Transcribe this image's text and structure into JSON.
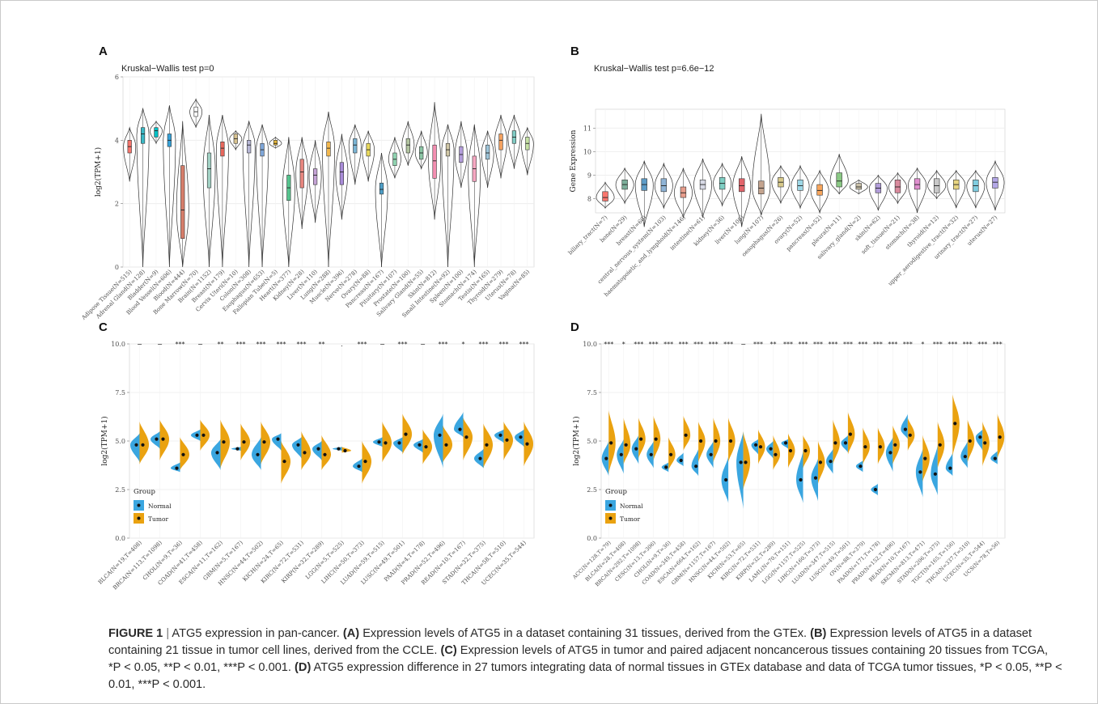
{
  "figure": {
    "caption_label": "FIGURE 1",
    "caption_separator": "|",
    "caption_segments": [
      {
        "text": "ATG5 expression in pan-cancer. ",
        "bold": false
      },
      {
        "text": "(A)",
        "bold": true
      },
      {
        "text": " Expression levels of ATG5 in a dataset containing 31 tissues, derived from the GTEx. ",
        "bold": false
      },
      {
        "text": "(B)",
        "bold": true
      },
      {
        "text": " Expression levels of ATG5 in a dataset containing 21 tissue in tumor cell lines, derived from the CCLE. ",
        "bold": false
      },
      {
        "text": "(C)",
        "bold": true
      },
      {
        "text": " Expression levels of ATG5 in tumor and paired adjacent noncancerous tissues containing 20 tissues from TCGA, *P < 0.05, **P < 0.01, ***P < 0.001. ",
        "bold": false
      },
      {
        "text": "(D)",
        "bold": true
      },
      {
        "text": " ATG5 expression difference in 27 tumors integrating data of normal tissues in GTEx database and data of TCGA tumor tissues, *P < 0.05, **P < 0.01, ***P < 0.001.",
        "bold": false
      }
    ]
  },
  "colors": {
    "normal": "#3aa6e0",
    "tumor": "#eaa210",
    "panel_bg": "#ffffff",
    "grid": "#ebebeb",
    "axis_text": "#4d4d4d"
  },
  "chart_data": [
    {
      "panel": "A",
      "type": "violin",
      "title": "Kruskal−Wallis test p=0",
      "xlabel": "",
      "ylabel": "log2(TPM+1)",
      "ylim": [
        0,
        6
      ],
      "yticks": [
        0,
        2,
        4,
        6
      ],
      "categories": [
        "Adipose Tissue(N=515)",
        "Adrenal Gland(N=128)",
        "Bladder(N=9)",
        "Blood Vessel(N=606)",
        "Blood(N=444)",
        "Bone Marrow(N=70)",
        "Brain(N=1152)",
        "Breast(N=179)",
        "Cervix Uteri(N=10)",
        "Colon(N=308)",
        "Esophagus(N=653)",
        "Fallopian Tube(N=5)",
        "Heart(N=377)",
        "Kidney(N=28)",
        "Liver(N=110)",
        "Lung(N=288)",
        "Muscle(N=396)",
        "Nerve(N=278)",
        "Ovary(N=88)",
        "Pancreas(N=167)",
        "Pituitary(N=107)",
        "Prostate(N=100)",
        "Salivary Gland(N=55)",
        "Skin(N=812)",
        "Small Intestine(N=92)",
        "Spleen(N=100)",
        "Stomach(N=174)",
        "Testis(N=165)",
        "Thyroid(N=279)",
        "Uterus(N=78)",
        "Vagina(N=85)"
      ],
      "medians": [
        3.8,
        4.2,
        4.3,
        4.0,
        1.8,
        4.9,
        3.1,
        3.75,
        4.05,
        3.85,
        3.7,
        3.9,
        2.5,
        3.0,
        2.9,
        3.75,
        3.0,
        3.85,
        3.7,
        2.45,
        3.4,
        3.85,
        3.6,
        3.35,
        3.7,
        3.55,
        3.1,
        3.6,
        4.0,
        4.1,
        3.9
      ],
      "q1": [
        3.6,
        3.9,
        4.1,
        3.8,
        0.9,
        4.75,
        2.5,
        3.5,
        3.9,
        3.6,
        3.5,
        3.85,
        2.1,
        2.5,
        2.6,
        3.5,
        2.6,
        3.6,
        3.5,
        2.3,
        3.2,
        3.6,
        3.4,
        2.8,
        3.5,
        3.3,
        2.7,
        3.4,
        3.7,
        3.9,
        3.7
      ],
      "q3": [
        4.0,
        4.4,
        4.4,
        4.2,
        3.2,
        5.05,
        3.6,
        3.95,
        4.2,
        4.0,
        3.9,
        4.0,
        2.9,
        3.4,
        3.1,
        3.95,
        3.3,
        4.05,
        3.9,
        2.65,
        3.6,
        4.05,
        3.8,
        3.85,
        3.9,
        3.8,
        3.5,
        3.85,
        4.2,
        4.3,
        4.1
      ],
      "ymin": [
        2.7,
        0,
        3.9,
        0,
        0,
        4.4,
        0,
        0,
        3.7,
        0,
        0,
        3.75,
        0,
        1.2,
        1.4,
        0,
        1.5,
        2.6,
        2.7,
        0,
        2.8,
        3.2,
        3.1,
        1.5,
        0,
        2.5,
        0,
        2.5,
        2.8,
        3.1,
        2.9
      ],
      "ymax": [
        4.4,
        5.0,
        4.6,
        5.1,
        4.6,
        5.3,
        4.8,
        4.8,
        4.3,
        4.6,
        4.5,
        4.1,
        4.1,
        4.1,
        4.0,
        4.9,
        4.2,
        4.5,
        4.3,
        3.6,
        4.1,
        4.6,
        4.3,
        5.2,
        4.5,
        4.6,
        4.5,
        4.3,
        4.8,
        4.8,
        4.4
      ],
      "fills": [
        "#f8766d",
        "#3ab9c6",
        "#00bfc4",
        "#35a2d9",
        "#d67d6a",
        "#ffffff",
        "#a3d2c5",
        "#e8685d",
        "#d8c390",
        "#b7b7d6",
        "#7fa7d9",
        "#e7b83a",
        "#55c48e",
        "#e8867f",
        "#c5a3d6",
        "#f2b84e",
        "#a98cd9",
        "#7bb5d5",
        "#e8d85c",
        "#4fa0c9",
        "#8fd3b0",
        "#b2c4a0",
        "#8bc6a5",
        "#f48fb1",
        "#d0c7a7",
        "#b39ddb",
        "#f6a7c1",
        "#9ec5d9",
        "#f4a261",
        "#80cbc4",
        "#c5e1a5"
      ]
    },
    {
      "panel": "B",
      "type": "violin",
      "title": "Kruskal−Wallis test p=6.6e−12",
      "xlabel": "",
      "ylabel": "Gene Expression",
      "ylim": [
        7.4,
        11.8
      ],
      "yticks": [
        8,
        9,
        10,
        11
      ],
      "categories": [
        "biliary_tract(N=7)",
        "bone(N=29)",
        "breast(N=60)",
        "central_nervous_system(N=103)",
        "haematopoietic_and_lymphoid(N=146)",
        "intestine(N=61)",
        "kidney(N=36)",
        "liver(N=108)",
        "lung(N=107)",
        "oesophagus(N=26)",
        "ovary(N=52)",
        "pancreas(N=52)",
        "pleura(N=11)",
        "salivary_gland(N=2)",
        "skin(N=62)",
        "soft_tissue(N=21)",
        "stomach(N=38)",
        "thyroid(N=12)",
        "upper_aerodigestive_tract(N=32)",
        "urinary_tract(N=27)",
        "uterus(N=27)"
      ],
      "medians": [
        8.05,
        8.6,
        8.6,
        8.55,
        8.25,
        8.6,
        8.65,
        8.55,
        8.45,
        8.7,
        8.55,
        8.35,
        8.75,
        8.5,
        8.45,
        8.5,
        8.6,
        8.55,
        8.6,
        8.55,
        8.7
      ],
      "q1": [
        7.9,
        8.4,
        8.35,
        8.3,
        8.05,
        8.4,
        8.4,
        8.3,
        8.2,
        8.5,
        8.35,
        8.15,
        8.5,
        8.4,
        8.25,
        8.25,
        8.4,
        8.25,
        8.4,
        8.3,
        8.45
      ],
      "q3": [
        8.3,
        8.8,
        8.85,
        8.85,
        8.5,
        8.8,
        8.9,
        8.85,
        8.75,
        8.9,
        8.8,
        8.6,
        9.1,
        8.65,
        8.65,
        8.8,
        8.85,
        8.85,
        8.8,
        8.8,
        8.9
      ],
      "ymin": [
        7.6,
        7.8,
        6.8,
        7.6,
        7.2,
        7.2,
        7.7,
        6.8,
        7.3,
        7.8,
        7.6,
        7.4,
        8.2,
        8.2,
        7.5,
        7.8,
        7.4,
        8.0,
        7.6,
        7.6,
        7.5
      ],
      "ymax": [
        8.7,
        9.3,
        9.6,
        9.5,
        9.3,
        9.7,
        9.5,
        9.8,
        11.6,
        9.4,
        9.4,
        9.2,
        9.9,
        8.8,
        9.0,
        9.1,
        9.3,
        9.2,
        9.2,
        9.2,
        9.6
      ],
      "fills": [
        "#f8766d",
        "#7cae9a",
        "#5d9cc8",
        "#8fb4d6",
        "#e79d8c",
        "#d7d9e5",
        "#7fcfc4",
        "#e2646a",
        "#c4a48f",
        "#d7c98a",
        "#9dd7e6",
        "#f7a55c",
        "#8ac984",
        "#c9c0a8",
        "#b19cd9",
        "#d98a9d",
        "#e08fcf",
        "#c8c8c8",
        "#e8d580",
        "#80cde0",
        "#b3a7e6"
      ]
    },
    {
      "panel": "C",
      "type": "split-violin",
      "title": "",
      "xlabel": "",
      "ylabel": "log2(TPM+1)",
      "ylim": [
        0,
        10
      ],
      "yticks": [
        0.0,
        2.5,
        5.0,
        7.5,
        10.0
      ],
      "legend_title": "Group",
      "legend_position": "bottom-left",
      "series": [
        {
          "name": "Normal"
        },
        {
          "name": "Tumor"
        }
      ],
      "categories": [
        "BLCA(N=19,T=408)",
        "BRCA(N=113,T=1098)",
        "CHOL(N=9,T=36)",
        "COAD(N=41,T=458)",
        "ESCA(N=11,T=162)",
        "GBM(N=5,T=167)",
        "HNSC(N=44,T=502)",
        "KICH(N=24,T=65)",
        "KIRC(N=72,T=531)",
        "KIRP(N=32,T=289)",
        "LGG(N=5,T=525)",
        "LIHC(N=50,T=373)",
        "LUAD(N=59,T=515)",
        "LUSC(N=49,T=501)",
        "PAAD(N=4,T=178)",
        "PRAD(N=52,T=496)",
        "READ(N=10,T=167)",
        "STAD(N=32,T=375)",
        "THCA(N=58,T=510)",
        "UCEC(N=35,T=544)"
      ],
      "normal_median": [
        4.8,
        5.1,
        3.6,
        5.3,
        4.4,
        4.6,
        4.3,
        5.1,
        4.8,
        4.6,
        4.6,
        3.7,
        4.95,
        4.9,
        4.8,
        5.3,
        5.6,
        4.1,
        5.3,
        5.2
      ],
      "tumor_median": [
        4.8,
        5.1,
        4.3,
        5.3,
        4.95,
        4.95,
        4.95,
        3.95,
        4.4,
        4.3,
        4.5,
        3.95,
        4.9,
        5.35,
        4.7,
        4.8,
        5.2,
        4.8,
        5.05,
        4.85
      ],
      "normal_range": [
        [
          3.9,
          5.4
        ],
        [
          4.6,
          5.5
        ],
        [
          3.4,
          3.9
        ],
        [
          5.0,
          5.6
        ],
        [
          3.5,
          5.1
        ],
        [
          4.5,
          4.7
        ],
        [
          3.5,
          5.2
        ],
        [
          4.5,
          5.4
        ],
        [
          4.1,
          5.2
        ],
        [
          4.0,
          5.0
        ],
        [
          4.5,
          4.7
        ],
        [
          3.4,
          4.1
        ],
        [
          4.7,
          5.2
        ],
        [
          4.4,
          5.2
        ],
        [
          4.4,
          5.1
        ],
        [
          3.6,
          6.4
        ],
        [
          5.2,
          6.5
        ],
        [
          3.6,
          4.6
        ],
        [
          4.9,
          5.6
        ],
        [
          4.7,
          5.6
        ]
      ],
      "tumor_range": [
        [
          3.8,
          6.0
        ],
        [
          4.0,
          6.1
        ],
        [
          3.5,
          5.2
        ],
        [
          4.5,
          6.1
        ],
        [
          3.6,
          6.1
        ],
        [
          4.0,
          5.9
        ],
        [
          3.8,
          6.0
        ],
        [
          2.8,
          5.0
        ],
        [
          3.5,
          5.5
        ],
        [
          3.5,
          5.3
        ],
        [
          4.4,
          4.7
        ],
        [
          2.8,
          5.0
        ],
        [
          3.9,
          6.0
        ],
        [
          4.3,
          6.4
        ],
        [
          3.8,
          5.6
        ],
        [
          3.9,
          5.8
        ],
        [
          4.0,
          6.2
        ],
        [
          3.6,
          5.9
        ],
        [
          4.0,
          6.0
        ],
        [
          3.7,
          6.0
        ]
      ],
      "significance": [
        "−",
        "−",
        "***",
        "−",
        "**",
        "***",
        "***",
        "***",
        "***",
        "**",
        ".",
        "***",
        "−",
        "***",
        "−",
        "***",
        "*",
        "***",
        "***",
        "***"
      ]
    },
    {
      "panel": "D",
      "type": "split-violin",
      "title": "",
      "xlabel": "",
      "ylabel": "log2(TPM+1)",
      "ylim": [
        0,
        10
      ],
      "yticks": [
        0.0,
        2.5,
        5.0,
        7.5,
        10.0
      ],
      "legend_title": "Group",
      "legend_position": "bottom-left",
      "series": [
        {
          "name": "Normal"
        },
        {
          "name": "Tumor"
        }
      ],
      "categories": [
        "ACC(N=128,T=79)",
        "BLCA(N=28,T=408)",
        "BRCA(N=292,T=1098)",
        "CESC(N=13,T=306)",
        "CHOL(N=9,T=36)",
        "COAD(N=349,T=458)",
        "ESCA(N=664,T=162)",
        "GBM(N=1157,T=167)",
        "HNSC(N=44,T=502)",
        "KICH(N=53,T=65)",
        "KIRC(N=72,T=531)",
        "KIRP(N=32,T=289)",
        "LAML(N=70,T=151)",
        "LGG(N=1157,T=525)",
        "LIHC(N=160,T=373)",
        "LUAD(N=347,T=515)",
        "LUSC(N=49,T=501)",
        "OV(N=88,T=379)",
        "PAAD(N=171,T=178)",
        "PRAD(N=152,T=496)",
        "READ(N=10,T=167)",
        "SKCM(N=813,T=471)",
        "STAD(N=206,T=375)",
        "TGCT(N=165,T=156)",
        "THCA(N=337,T=510)",
        "UCEC(N=35,T=544)",
        "UCS(N=78,T=56)"
      ],
      "normal_median": [
        4.1,
        4.3,
        4.6,
        4.3,
        3.65,
        4.0,
        3.7,
        4.3,
        3.0,
        3.9,
        4.8,
        4.6,
        4.9,
        3.0,
        3.1,
        3.95,
        4.9,
        3.7,
        2.5,
        4.4,
        5.6,
        3.4,
        3.3,
        3.6,
        4.2,
        5.2,
        4.1
      ],
      "tumor_median": [
        4.9,
        4.8,
        5.1,
        5.1,
        4.3,
        5.3,
        5.0,
        5.0,
        5.0,
        3.9,
        4.7,
        4.3,
        4.5,
        4.5,
        3.9,
        4.9,
        5.35,
        4.7,
        4.7,
        4.8,
        5.3,
        4.1,
        4.8,
        5.9,
        5.0,
        4.9,
        5.2
      ],
      "normal_range": [
        [
          3.2,
          5.0
        ],
        [
          3.3,
          5.1
        ],
        [
          3.8,
          5.3
        ],
        [
          3.6,
          5.0
        ],
        [
          3.4,
          3.9
        ],
        [
          3.7,
          4.4
        ],
        [
          3.2,
          4.6
        ],
        [
          3.6,
          5.0
        ],
        [
          1.8,
          4.2
        ],
        [
          1.5,
          5.5
        ],
        [
          4.3,
          5.1
        ],
        [
          4.1,
          5.0
        ],
        [
          4.6,
          5.1
        ],
        [
          1.8,
          4.5
        ],
        [
          1.9,
          4.1
        ],
        [
          3.3,
          4.6
        ],
        [
          4.4,
          5.3
        ],
        [
          3.4,
          4.0
        ],
        [
          2.2,
          2.8
        ],
        [
          3.4,
          5.2
        ],
        [
          5.1,
          6.4
        ],
        [
          2.1,
          4.6
        ],
        [
          2.2,
          4.8
        ],
        [
          3.2,
          4.4
        ],
        [
          3.6,
          5.0
        ],
        [
          4.5,
          5.6
        ],
        [
          3.8,
          4.5
        ]
      ],
      "tumor_range": [
        [
          3.3,
          6.6
        ],
        [
          3.8,
          6.2
        ],
        [
          4.1,
          6.2
        ],
        [
          4.0,
          6.3
        ],
        [
          3.5,
          5.2
        ],
        [
          4.5,
          6.3
        ],
        [
          3.9,
          6.0
        ],
        [
          3.9,
          6.2
        ],
        [
          3.9,
          6.2
        ],
        [
          2.5,
          5.5
        ],
        [
          3.8,
          5.6
        ],
        [
          3.5,
          5.3
        ],
        [
          3.6,
          5.4
        ],
        [
          3.6,
          5.3
        ],
        [
          2.8,
          5.0
        ],
        [
          3.8,
          6.1
        ],
        [
          4.3,
          6.5
        ],
        [
          3.8,
          5.7
        ],
        [
          3.8,
          5.7
        ],
        [
          3.8,
          5.8
        ],
        [
          4.5,
          6.2
        ],
        [
          2.9,
          5.3
        ],
        [
          3.6,
          6.0
        ],
        [
          4.2,
          7.4
        ],
        [
          3.9,
          6.1
        ],
        [
          3.7,
          6.0
        ],
        [
          4.1,
          6.4
        ]
      ],
      "significance": [
        "***",
        "*",
        "***",
        "***",
        "***",
        "***",
        "***",
        "***",
        "***",
        "−",
        "***",
        "**",
        "***",
        "***",
        "***",
        "***",
        "***",
        "***",
        "***",
        "***",
        "***",
        "*",
        "***",
        "***",
        "***",
        "***",
        "***"
      ]
    }
  ]
}
